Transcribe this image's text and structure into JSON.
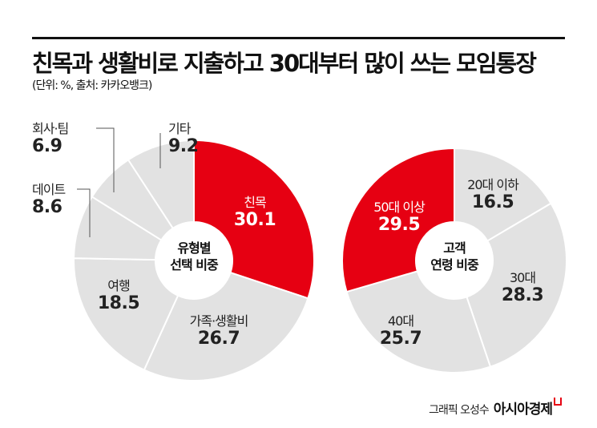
{
  "title": "친목과 생활비로 지출하고 30대부터 많이 쓰는 모임통장",
  "subtitle": "(단위: %, 출처: 카카오뱅크)",
  "credit": {
    "author": "그래픽 오성수",
    "brand": "아시아경제"
  },
  "colors": {
    "highlight": "#e60012",
    "base": "#e2e2e2"
  },
  "chart_data": [
    {
      "type": "pie",
      "variant": "donut",
      "center_label": [
        "유형별",
        "선택 비중"
      ],
      "categories": [
        "친목",
        "가족·생활비",
        "여행",
        "데이트",
        "회사·팀",
        "기타"
      ],
      "values": [
        30.1,
        26.7,
        18.5,
        8.6,
        6.9,
        9.2
      ],
      "highlight": "친목",
      "order": "clockwise from top"
    },
    {
      "type": "pie",
      "variant": "donut",
      "center_label": [
        "고객",
        "연령 비중"
      ],
      "categories": [
        "20대 이하",
        "30대",
        "40대",
        "50대 이상"
      ],
      "values": [
        16.5,
        28.3,
        25.7,
        29.5
      ],
      "highlight": "50대 이상",
      "order": "clockwise from top"
    }
  ]
}
